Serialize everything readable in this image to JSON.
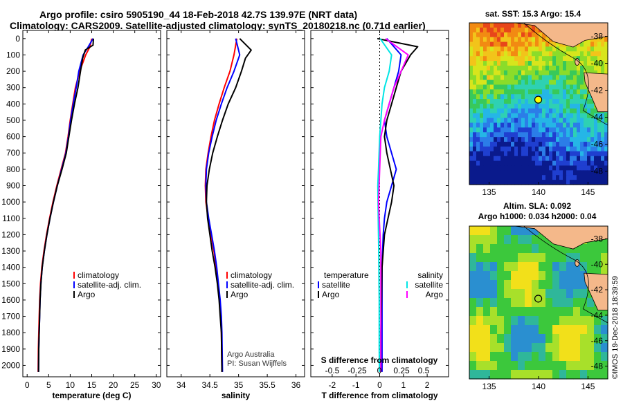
{
  "header": {
    "line1": "Argo profile: csiro 5905190_44 18-Feb-2018 42.7S 139.97E (NRT data)",
    "line2": "Climatology: CARS2009. Satellite-adjusted climatology: synTS_20180218.nc (0.71d earlier)"
  },
  "credit": {
    "line1": "Argo Australia",
    "line2": "PI: Susan Wijffels",
    "imos": "©IMOS 19-Dec-2018 18:39:59"
  },
  "colors": {
    "climatology": "#ff0000",
    "satellite": "#0000ff",
    "argo": "#000000",
    "satellite_salinity": "#00e5e5",
    "argo_salinity": "#ff00ff",
    "land": "#f4b88a",
    "marker": "#ffff00"
  },
  "chart_data": [
    {
      "type": "line",
      "panel": "temperature",
      "xlabel": "temperature (deg C)",
      "xlim": [
        -1,
        31
      ],
      "xticks": [
        0,
        5,
        10,
        15,
        20,
        25,
        30
      ],
      "ylim": [
        -50,
        2070
      ],
      "yticks": [
        0,
        100,
        200,
        300,
        400,
        500,
        600,
        700,
        800,
        900,
        1000,
        1100,
        1200,
        1300,
        1400,
        1500,
        1600,
        1700,
        1800,
        1900,
        2000
      ],
      "legend": {
        "placement": "lower-center",
        "entries": [
          "climatology",
          "satellite-adj. clim.",
          "Argo"
        ]
      },
      "series": [
        {
          "name": "climatology",
          "color": "#ff0000",
          "x": [
            15.0,
            14.6,
            13.6,
            12.2,
            11.2,
            10.6,
            10.0,
            9.5,
            8.9,
            7.9,
            6.9,
            6.0,
            5.2,
            4.5,
            3.9,
            3.4,
            3.1,
            2.9,
            2.8,
            2.7,
            2.6,
            2.55
          ],
          "y": [
            0,
            50,
            100,
            200,
            300,
            400,
            500,
            600,
            700,
            800,
            900,
            1000,
            1100,
            1200,
            1300,
            1400,
            1500,
            1600,
            1700,
            1800,
            1900,
            2040
          ]
        },
        {
          "name": "satellite-adj. clim.",
          "color": "#0000ff",
          "x": [
            15.3,
            14.2,
            13.0,
            12.0,
            11.4,
            10.7,
            10.1,
            9.6,
            9.0,
            8.0,
            7.0,
            6.1,
            5.3,
            4.6,
            4.0,
            3.5,
            3.2,
            3.0,
            2.9,
            2.8,
            2.7,
            2.65
          ],
          "y": [
            0,
            50,
            100,
            200,
            300,
            400,
            500,
            600,
            700,
            800,
            900,
            1000,
            1100,
            1200,
            1300,
            1400,
            1500,
            1600,
            1700,
            1800,
            1900,
            2040
          ]
        },
        {
          "name": "Argo",
          "color": "#000000",
          "x": [
            15.4,
            15.3,
            13.5,
            12.9,
            12.4,
            11.8,
            11.0,
            10.3,
            9.7,
            9.1,
            8.1,
            7.0,
            6.1,
            5.3,
            4.6,
            4.0,
            3.5,
            3.2,
            3.0,
            2.9,
            2.8,
            2.7,
            2.65
          ],
          "y": [
            0,
            40,
            70,
            120,
            200,
            300,
            400,
            500,
            600,
            700,
            800,
            900,
            1000,
            1100,
            1200,
            1300,
            1400,
            1500,
            1600,
            1700,
            1800,
            1900,
            2040
          ]
        }
      ]
    },
    {
      "type": "line",
      "panel": "salinity",
      "xlabel": "salinity",
      "xlim": [
        33.75,
        36.15
      ],
      "xticks": [
        34,
        34.5,
        35,
        35.5,
        36
      ],
      "ylim": [
        -50,
        2070
      ],
      "legend": {
        "placement": "lower-center",
        "entries": [
          "climatology",
          "satellite-adj. clim.",
          "Argo"
        ]
      },
      "series": [
        {
          "name": "climatology",
          "color": "#ff0000",
          "x": [
            34.97,
            34.92,
            34.85,
            34.75,
            34.66,
            34.58,
            34.52,
            34.47,
            34.43,
            34.42,
            34.43,
            34.47,
            34.52,
            34.57,
            34.61,
            34.64,
            34.67,
            34.69,
            34.7,
            34.71
          ],
          "y": [
            0,
            100,
            200,
            300,
            400,
            500,
            600,
            700,
            800,
            900,
            1000,
            1100,
            1200,
            1300,
            1400,
            1500,
            1600,
            1700,
            1800,
            2040
          ]
        },
        {
          "name": "satellite-adj. clim.",
          "color": "#0000ff",
          "x": [
            34.95,
            35.02,
            34.92,
            34.8,
            34.7,
            34.61,
            34.54,
            34.48,
            34.44,
            34.43,
            34.44,
            34.48,
            34.53,
            34.58,
            34.62,
            34.65,
            34.68,
            34.7,
            34.71,
            34.72
          ],
          "y": [
            0,
            100,
            200,
            300,
            400,
            500,
            600,
            700,
            800,
            900,
            1000,
            1100,
            1200,
            1300,
            1400,
            1500,
            1600,
            1700,
            1800,
            2040
          ]
        },
        {
          "name": "Argo",
          "color": "#000000",
          "x": [
            35.02,
            35.22,
            35.12,
            35.05,
            34.95,
            34.82,
            34.72,
            34.63,
            34.55,
            34.49,
            34.45,
            34.44,
            34.46,
            34.5,
            34.54,
            34.59,
            34.63,
            34.66,
            34.68,
            34.7,
            34.71
          ],
          "y": [
            0,
            70,
            120,
            200,
            300,
            400,
            500,
            600,
            700,
            800,
            900,
            1000,
            1100,
            1200,
            1300,
            1400,
            1500,
            1600,
            1700,
            1800,
            2040
          ]
        }
      ]
    },
    {
      "type": "line",
      "panel": "difference",
      "xlabel": "T difference from climatology",
      "xlim": [
        -2.9,
        2.9
      ],
      "xticks": [
        -2,
        -1,
        0,
        1,
        2
      ],
      "xlabel_top": "S difference from climatology",
      "xticks_top_labels": [
        "-0.5",
        "-0.25",
        "0",
        "0.25",
        "0.5"
      ],
      "ylim": [
        -50,
        2070
      ],
      "legend_left": {
        "title": "temperature",
        "entries": [
          "satellite",
          "Argo"
        ]
      },
      "legend_right": {
        "title": "salinity",
        "entries": [
          "satellite",
          "Argo"
        ]
      },
      "series": [
        {
          "name": "temperature satellite",
          "color": "#0000ff",
          "x": [
            0.3,
            0.9,
            0.8,
            0.6,
            0.4,
            0.2,
            0.3,
            0.7,
            0.5,
            0.3,
            0.2,
            0.15,
            0.1,
            0.1,
            0.1,
            0.1,
            0.1
          ],
          "y": [
            0,
            100,
            200,
            300,
            400,
            500,
            600,
            800,
            900,
            1000,
            1100,
            1200,
            1400,
            1600,
            1800,
            1900,
            2040
          ]
        },
        {
          "name": "temperature Argo",
          "color": "#000000",
          "x": [
            -0.1,
            1.6,
            1.3,
            0.9,
            0.7,
            0.5,
            0.3,
            0.2,
            0.3,
            0.6,
            0.5,
            0.35,
            0.2,
            0.1,
            0.08,
            0.05,
            0.05,
            0.05
          ],
          "y": [
            0,
            50,
            100,
            200,
            300,
            400,
            500,
            600,
            700,
            900,
            1000,
            1100,
            1200,
            1400,
            1600,
            1800,
            1900,
            2040
          ]
        },
        {
          "name": "salinity satellite",
          "color": "#00e5e5",
          "x": [
            0.02,
            0.5,
            0.4,
            0.2,
            0.1,
            0.05,
            0.0,
            -0.05,
            -0.08,
            -0.06,
            -0.04,
            -0.03,
            -0.02,
            -0.02,
            -0.02,
            -0.02,
            -0.01
          ],
          "y": [
            0,
            100,
            200,
            300,
            400,
            500,
            600,
            800,
            900,
            1100,
            1300,
            1500,
            1600,
            1700,
            1800,
            1900,
            2040
          ]
        },
        {
          "name": "salinity Argo",
          "color": "#ff00ff",
          "x": [
            0.25,
            1.2,
            0.9,
            0.6,
            0.4,
            0.2,
            0.05,
            0.0,
            -0.05,
            -0.02,
            0.05,
            0.05,
            0.05
          ],
          "y": [
            0,
            100,
            200,
            300,
            400,
            500,
            600,
            800,
            1000,
            1100,
            1300,
            1600,
            2040
          ]
        }
      ]
    },
    {
      "type": "heatmap",
      "panel": "sst-map",
      "title": "sat. SST: 15.3 Argo: 15.4",
      "xlim": [
        133,
        147
      ],
      "ylim": [
        -49,
        -37
      ],
      "xticks": [
        135,
        140,
        145
      ],
      "yticks": [
        -38,
        -40,
        -42,
        -44,
        -46,
        -48
      ],
      "profile_lon": 139.97,
      "profile_lat": -42.7
    },
    {
      "type": "heatmap",
      "panel": "sla-map",
      "title": "Altim. SLA: 0.092",
      "subtitle": "Argo h1000: 0.034 h2000: 0.04",
      "xlim": [
        133,
        147
      ],
      "ylim": [
        -49,
        -37
      ],
      "xticks": [
        135,
        140,
        145
      ],
      "yticks": [
        -38,
        -40,
        -42,
        -44,
        -46,
        -48
      ],
      "profile_lon": 139.97,
      "profile_lat": -42.7
    }
  ]
}
